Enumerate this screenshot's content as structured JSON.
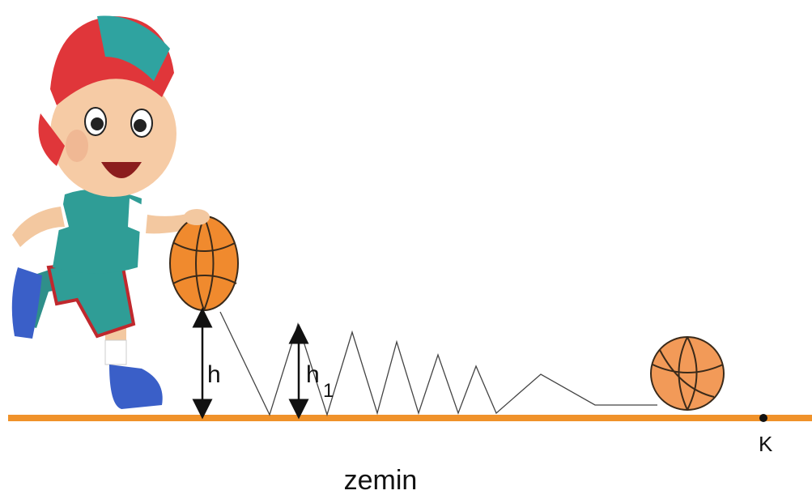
{
  "labels": {
    "h": "h",
    "h1": {
      "base": "h",
      "sub": "1"
    },
    "point": "K",
    "ground": "zemin"
  }
}
